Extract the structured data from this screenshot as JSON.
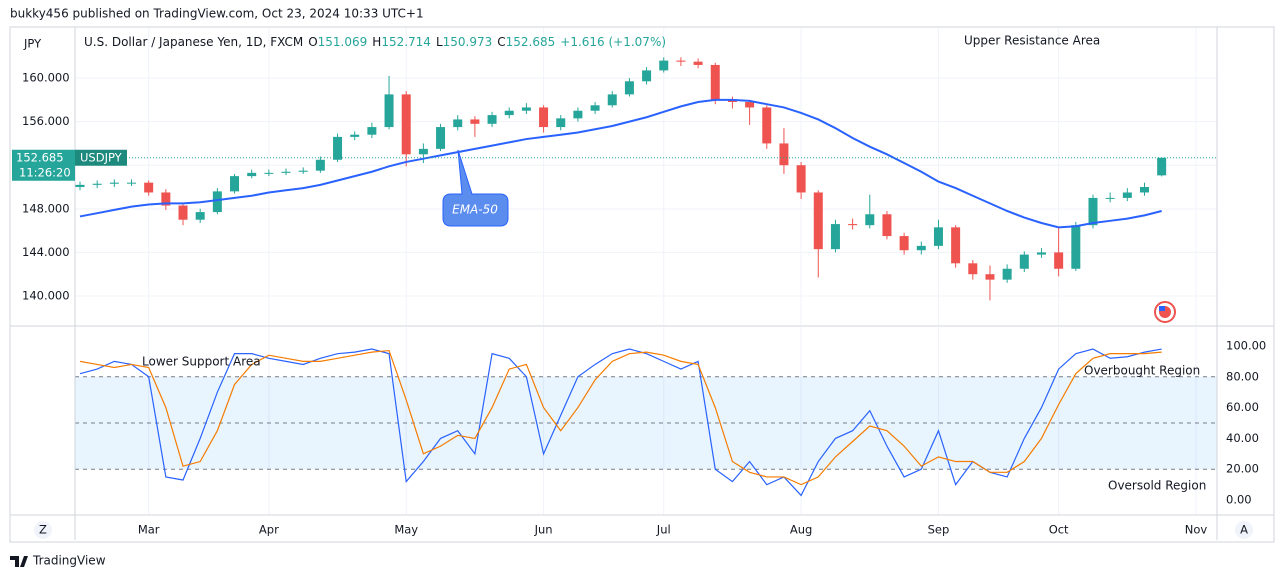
{
  "header": {
    "publisher": "bukky456 published on TradingView.com, Oct 23, 2024 10:33 UTC+1",
    "footer": "TradingView"
  },
  "controls": {
    "left": "Z",
    "right": "A"
  },
  "chart_data": [
    {
      "type": "candlestick",
      "symbol": "U.S. Dollar / Japanese Yen, 1D, FXCM",
      "ohlc_labels": [
        "O",
        "H",
        "L",
        "C"
      ],
      "ohlc_values": [
        151.069,
        152.714,
        150.973,
        152.685
      ],
      "change": "+1.616 (+1.07%)",
      "currency": "JPY",
      "categories": [
        null,
        null,
        null,
        null,
        "Mar",
        null,
        null,
        null,
        null,
        null,
        null,
        "Apr",
        null,
        null,
        null,
        null,
        null,
        null,
        null,
        "May",
        null,
        null,
        null,
        null,
        null,
        null,
        null,
        "Jun",
        null,
        null,
        null,
        null,
        null,
        null,
        "Jul",
        null,
        null,
        null,
        null,
        null,
        null,
        null,
        "Aug",
        null,
        null,
        null,
        null,
        null,
        null,
        null,
        "Sep",
        null,
        null,
        null,
        null,
        null,
        null,
        "Oct",
        null,
        null,
        null,
        null,
        null,
        null,
        null,
        "Nov"
      ],
      "open": [
        150.0,
        150.2,
        150.3,
        150.4,
        150.4,
        149.5,
        148.3,
        147.0,
        147.7,
        149.6,
        151.0,
        151.3,
        151.3,
        151.4,
        151.5,
        152.5,
        154.6,
        154.8,
        155.5,
        158.5,
        153.0,
        153.5,
        155.5,
        156.2,
        155.8,
        156.6,
        157.0,
        157.3,
        155.5,
        156.3,
        157.0,
        157.5,
        158.5,
        159.7,
        160.7,
        161.6,
        161.5,
        161.2,
        158.0,
        157.8,
        157.3,
        154.0,
        152.0,
        149.5,
        144.3,
        146.6,
        146.5,
        147.5,
        145.5,
        144.2,
        144.6,
        146.3,
        143.0,
        142.0,
        141.5,
        142.5,
        143.8,
        144.0,
        142.5,
        146.5,
        149.0,
        149.0,
        149.5,
        151.069,
        null,
        null
      ],
      "high": [
        150.5,
        150.6,
        150.7,
        150.7,
        150.6,
        149.8,
        148.5,
        148.0,
        149.9,
        151.2,
        151.6,
        151.6,
        151.7,
        151.8,
        152.8,
        154.9,
        155.1,
        155.9,
        160.2,
        158.8,
        154.0,
        155.8,
        156.6,
        156.5,
        156.9,
        157.3,
        157.7,
        157.5,
        156.6,
        157.3,
        157.8,
        158.8,
        160.0,
        161.0,
        161.9,
        161.9,
        161.8,
        161.4,
        158.3,
        158.0,
        157.5,
        155.4,
        152.3,
        149.7,
        147.0,
        147.1,
        149.3,
        147.8,
        145.8,
        145.0,
        147.0,
        146.5,
        143.3,
        142.8,
        142.9,
        144.1,
        144.4,
        146.3,
        146.8,
        149.3,
        149.5,
        149.9,
        150.4,
        152.714,
        null,
        null
      ],
      "low": [
        149.7,
        149.9,
        150.0,
        150.1,
        149.2,
        147.9,
        146.5,
        146.7,
        147.5,
        149.4,
        150.8,
        151.0,
        151.1,
        151.2,
        151.3,
        152.3,
        154.3,
        154.5,
        155.3,
        151.9,
        152.2,
        153.3,
        155.2,
        154.6,
        155.5,
        156.3,
        156.7,
        155.0,
        155.2,
        156.0,
        156.7,
        157.3,
        158.3,
        159.4,
        160.5,
        161.1,
        160.9,
        157.6,
        157.2,
        155.7,
        153.5,
        151.2,
        148.9,
        141.7,
        144.0,
        146.1,
        146.2,
        145.2,
        143.8,
        143.8,
        144.3,
        142.6,
        141.5,
        139.6,
        141.2,
        142.2,
        143.5,
        141.8,
        142.3,
        146.2,
        148.6,
        148.7,
        149.2,
        150.973,
        null,
        null
      ],
      "close": [
        150.2,
        150.3,
        150.4,
        150.4,
        149.5,
        148.3,
        147.0,
        147.7,
        149.6,
        151.0,
        151.3,
        151.3,
        151.4,
        151.5,
        152.5,
        154.6,
        154.8,
        155.5,
        158.5,
        153.0,
        153.5,
        155.5,
        156.2,
        155.8,
        156.6,
        157.0,
        157.3,
        155.5,
        156.3,
        157.0,
        157.5,
        158.5,
        159.7,
        160.7,
        161.6,
        161.5,
        161.2,
        158.0,
        157.8,
        157.3,
        154.0,
        152.0,
        149.5,
        144.3,
        146.6,
        146.5,
        147.5,
        145.5,
        144.2,
        144.6,
        146.3,
        143.0,
        142.0,
        141.5,
        142.5,
        143.8,
        144.0,
        142.5,
        146.5,
        149.0,
        149.0,
        149.5,
        150.0,
        152.685,
        null,
        null
      ],
      "up_color": "#26a69a",
      "down_color": "#ef5350",
      "ema": {
        "color": "#2962ff",
        "values": [
          147.3,
          147.6,
          147.9,
          148.2,
          148.4,
          148.5,
          148.5,
          148.6,
          148.8,
          149.0,
          149.2,
          149.5,
          149.7,
          149.9,
          150.2,
          150.6,
          151.0,
          151.4,
          151.9,
          152.3,
          152.6,
          152.9,
          153.2,
          153.5,
          153.8,
          154.1,
          154.4,
          154.6,
          154.8,
          155.0,
          155.3,
          155.6,
          156.0,
          156.4,
          156.9,
          157.4,
          157.8,
          158.0,
          158.0,
          157.9,
          157.6,
          157.3,
          156.8,
          156.2,
          155.4,
          154.5,
          153.7,
          153.0,
          152.2,
          151.4,
          150.5,
          149.9,
          149.2,
          148.5,
          147.8,
          147.2,
          146.7,
          146.3,
          146.4,
          146.7,
          146.9,
          147.1,
          147.4,
          147.8,
          null,
          null
        ]
      },
      "annotations": [
        "Upper Resistance Area",
        "EMA-50"
      ],
      "price_label": {
        "value": 152.685,
        "ticker": "USDJPY",
        "countdown": "11:26:20"
      },
      "ylim": [
        137.34,
        164.59
      ],
      "yticks": [
        {
          "value": 140,
          "label": "140.000"
        },
        {
          "value": 144,
          "label": "144.000"
        },
        {
          "value": 148,
          "label": "148.000"
        },
        {
          "value": 152,
          "label": "152.000"
        },
        {
          "value": 156,
          "label": "156.000"
        },
        {
          "value": 160,
          "label": "160.000"
        }
      ],
      "grid": true
    },
    {
      "type": "line",
      "series": [
        {
          "color": "#2962ff",
          "values": [
            82,
            85,
            90,
            88,
            80,
            15,
            13,
            40,
            70,
            95,
            95,
            92,
            90,
            88,
            92,
            95,
            96,
            98,
            95,
            12,
            25,
            40,
            45,
            30,
            95,
            92,
            80,
            30,
            55,
            80,
            88,
            95,
            98,
            95,
            90,
            85,
            90,
            20,
            12,
            25,
            10,
            15,
            3,
            25,
            40,
            45,
            58,
            35,
            15,
            20,
            45,
            10,
            25,
            18,
            15,
            40,
            60,
            85,
            95,
            98,
            92,
            93,
            96,
            98,
            null,
            null
          ]
        },
        {
          "color": "#f57c00",
          "values": [
            90,
            88,
            86,
            88,
            86,
            60,
            22,
            25,
            45,
            75,
            88,
            94,
            92,
            90,
            90,
            92,
            94,
            96,
            97,
            65,
            30,
            35,
            42,
            40,
            60,
            85,
            88,
            60,
            45,
            60,
            78,
            90,
            95,
            96,
            94,
            90,
            88,
            60,
            25,
            18,
            15,
            15,
            10,
            15,
            28,
            38,
            48,
            45,
            35,
            22,
            28,
            25,
            25,
            18,
            18,
            25,
            40,
            62,
            82,
            92,
            95,
            95,
            95,
            96,
            null,
            null
          ]
        }
      ],
      "band": [
        20,
        80
      ],
      "levels": [
        20,
        50,
        80
      ],
      "annotations": [
        "Lower Support Area",
        "Overbought Region",
        "Oversold Region"
      ],
      "ylim": [
        -9.7,
        112.3
      ],
      "yticks": [
        {
          "value": 0,
          "label": "0.00"
        },
        {
          "value": 20,
          "label": "20.00"
        },
        {
          "value": 40,
          "label": "40.00"
        },
        {
          "value": 60,
          "label": "60.00"
        },
        {
          "value": 80,
          "label": "80.00"
        },
        {
          "value": 100,
          "label": "100.00"
        }
      ],
      "grid": true
    }
  ]
}
